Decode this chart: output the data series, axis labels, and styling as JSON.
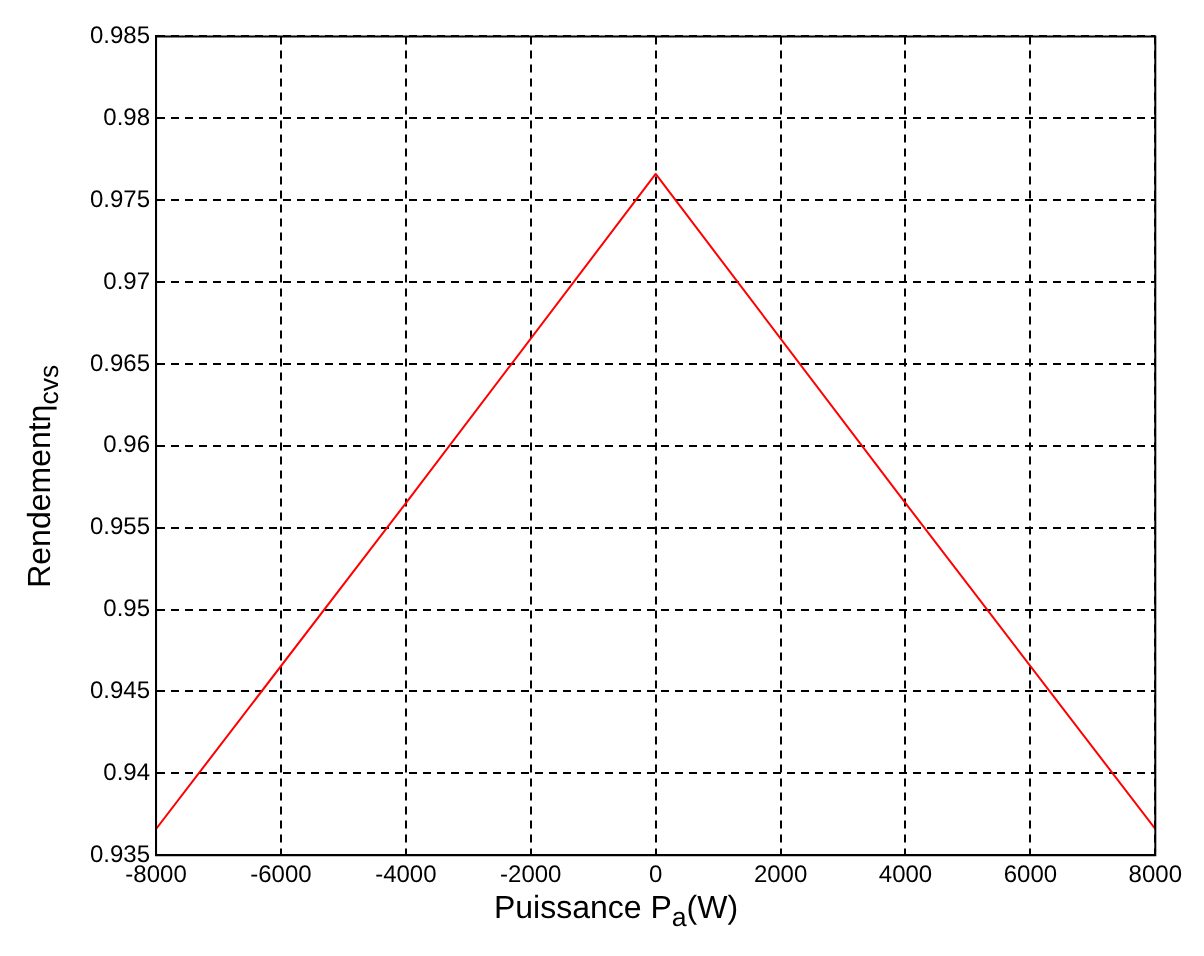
{
  "chart_data": {
    "type": "line",
    "xlabel": "Puissance P$_{a}$(W)",
    "ylabel": "Rendementη$_{cvs}$",
    "x": [
      -8000,
      -4000,
      0,
      4000,
      8000
    ],
    "series": [
      {
        "color": "#ff0000",
        "values": [
          0.9366,
          0.9565,
          0.9766,
          0.9565,
          0.9366
        ]
      }
    ],
    "xlim": [
      -8000,
      8000
    ],
    "xticks": [
      -8000,
      -6000,
      -4000,
      -2000,
      0,
      2000,
      4000,
      6000,
      8000
    ],
    "ylim": [
      0.935,
      0.985
    ],
    "yticks": [
      0.935,
      0.94,
      0.945,
      0.95,
      0.955,
      0.96,
      0.965,
      0.97,
      0.975,
      0.98,
      0.985
    ],
    "grid": true,
    "marker": "none",
    "line_style": "solid",
    "legend": false
  }
}
